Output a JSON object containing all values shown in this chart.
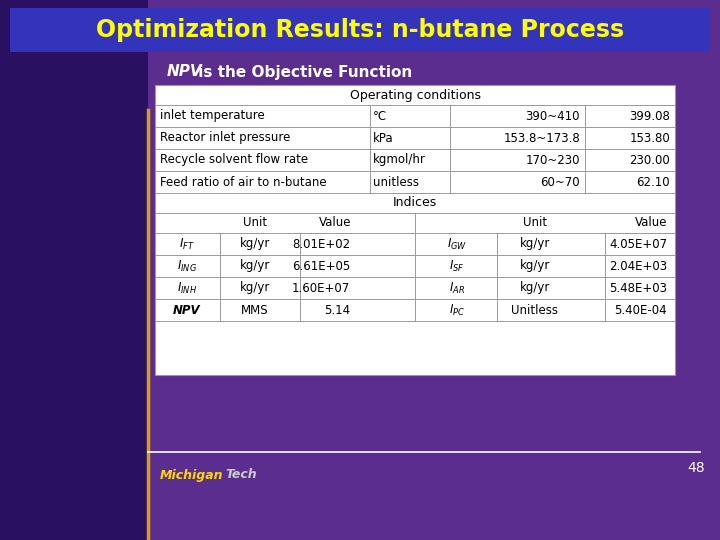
{
  "title": "Optimization Results: n-butane Process",
  "subtitle_italic": "NPV",
  "subtitle_rest": " is the Objective Function",
  "bg_color": "#5B2D8E",
  "title_bg_color": "#3333BB",
  "title_text_color": "#FFFF00",
  "slide_number": "48",
  "operating_conditions_header": "Operating conditions",
  "op_rows": [
    [
      "inlet temperature",
      "°C",
      "390~410",
      "399.08"
    ],
    [
      "Reactor inlet pressure",
      "kPa",
      "153.8~173.8",
      "153.80"
    ],
    [
      "Recycle solvent flow rate",
      "kgmol/hr",
      "170~230",
      "230.00"
    ],
    [
      "Feed ratio of air to n-butane",
      "unitless",
      "60~70",
      "62.10"
    ]
  ],
  "indices_header": "Indices",
  "indices_col_headers_left": [
    "",
    "Unit",
    "Value"
  ],
  "indices_col_headers_right": [
    "",
    "Unit",
    "Value"
  ],
  "indices_left": [
    [
      "$I_{FT}$",
      "kg/yr",
      "8.01E+02"
    ],
    [
      "$I_{ING}$",
      "kg/yr",
      "6.61E+05"
    ],
    [
      "$I_{INH}$",
      "kg/yr",
      "1.60E+07"
    ],
    [
      "NPV",
      "MMS",
      "5.14"
    ]
  ],
  "indices_right_labels": [
    "$I_{GW}$",
    "$I_{SF}$",
    "$I_{AR}$",
    "$I_{PC}$"
  ],
  "indices_right": [
    [
      "kg/yr",
      "4.05E+07"
    ],
    [
      "kg/yr",
      "2.04E+03"
    ],
    [
      "kg/yr",
      "5.48E+03"
    ],
    [
      "Unitless",
      "5.40E-04"
    ]
  ],
  "table_bg": "#FFFFFF",
  "footer_line_color": "#FFFFFF",
  "footer_logo_yellow": "#FFD700",
  "footer_logo_black": "#111111",
  "left_stripe_color": "#D4A017"
}
